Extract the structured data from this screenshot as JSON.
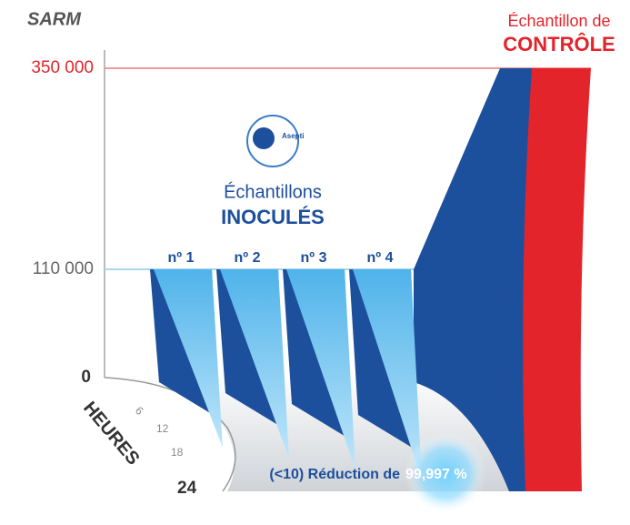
{
  "y_axis": {
    "label": "SARM",
    "ticks": [
      "350 000",
      "110 000",
      "0"
    ]
  },
  "x_axis": {
    "label": "HEURES",
    "ticks": [
      "6",
      "12",
      "18",
      "24"
    ]
  },
  "logo": {
    "text": "Asepti"
  },
  "inoculated": {
    "line1": "Échantillons",
    "line2": "INOCULÉS"
  },
  "samples": [
    "nº 1",
    "nº 2",
    "nº 3",
    "nº 4"
  ],
  "control": {
    "line1": "Échantillon de",
    "line2": "CONTRÔLE"
  },
  "footer": {
    "text": "(<10) Réduction de",
    "highlight": "99,997 %"
  }
}
